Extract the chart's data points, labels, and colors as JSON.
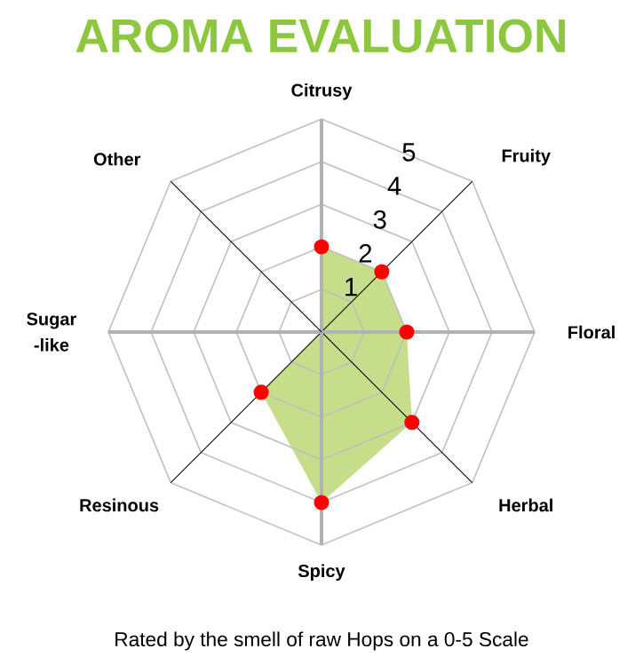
{
  "chart_data": {
    "type": "radar",
    "title": "AROMA EVALUATION",
    "annotations": [
      "Rated by the smell of raw Hops on a 0-5 Scale"
    ],
    "categories": [
      "Citrusy",
      "Fruity",
      "Floral",
      "Herbal",
      "Spicy",
      "Resinous",
      "Sugar -like",
      "Other"
    ],
    "series": [
      {
        "color": "#c6dd8a",
        "values": [
          2,
          2,
          2,
          3,
          4,
          2,
          0,
          0
        ]
      }
    ],
    "ylim": [
      0,
      5
    ],
    "yticks": [
      1,
      2,
      3,
      4,
      5
    ],
    "grid": true,
    "marker": "circle"
  }
}
